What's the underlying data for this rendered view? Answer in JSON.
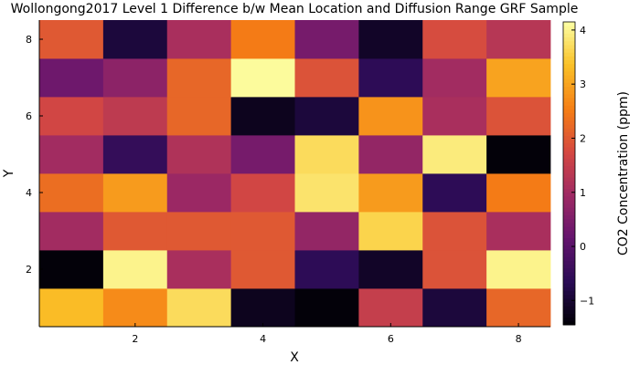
{
  "chart_data": {
    "type": "heatmap",
    "title": "Wollongong2017 Level 1 Difference b/w Mean Location and Diffusion Range GRF Sample",
    "xlabel": "X",
    "ylabel": "Y",
    "colorbar_label": "CO2 Concentration (ppm)",
    "colormap": "inferno",
    "x": [
      1,
      2,
      3,
      4,
      5,
      6,
      7,
      8
    ],
    "y": [
      1,
      2,
      3,
      4,
      5,
      6,
      7,
      8
    ],
    "xlim": [
      0.5,
      8.5
    ],
    "ylim": [
      0.5,
      8.5
    ],
    "x_ticks": [
      2,
      4,
      6,
      8
    ],
    "y_ticks": [
      2,
      4,
      6,
      8
    ],
    "zlim": [
      -1.45,
      4.15
    ],
    "colorbar_ticks": [
      -1,
      0,
      1,
      2,
      3,
      4
    ],
    "z": [
      [
        3.3,
        2.7,
        3.7,
        -1.2,
        -1.4,
        1.5,
        -0.9,
        2.2
      ],
      [
        -1.4,
        4.0,
        1.1,
        2.0,
        -0.6,
        -1.1,
        1.9,
        4.0
      ],
      [
        1.0,
        2.0,
        2.0,
        2.0,
        0.8,
        3.6,
        1.9,
        1.1
      ],
      [
        2.3,
        2.9,
        0.9,
        1.7,
        3.8,
        2.9,
        -0.6,
        2.5
      ],
      [
        1.0,
        -0.5,
        1.2,
        0.4,
        3.7,
        0.8,
        3.9,
        -1.4
      ],
      [
        1.7,
        1.4,
        2.2,
        -1.2,
        -0.9,
        2.8,
        1.1,
        1.9
      ],
      [
        0.3,
        0.7,
        2.2,
        4.1,
        1.9,
        -0.6,
        1.0,
        3.0
      ],
      [
        2.0,
        -0.9,
        1.1,
        2.5,
        0.4,
        -1.1,
        1.8,
        1.3
      ]
    ]
  }
}
